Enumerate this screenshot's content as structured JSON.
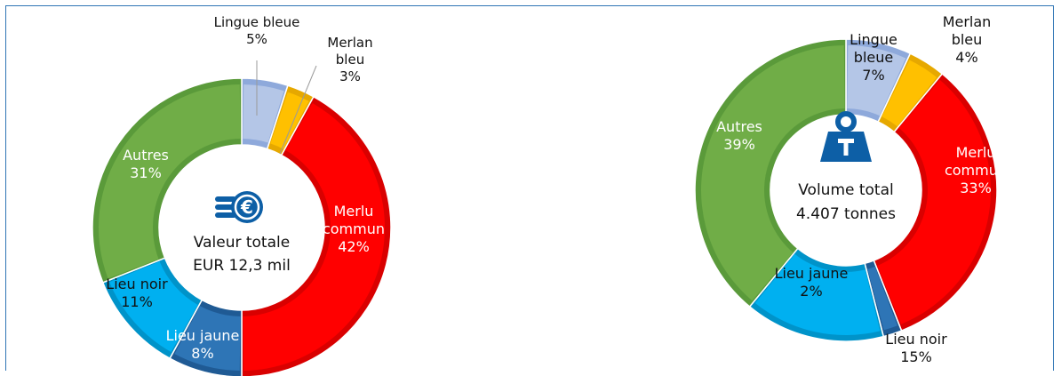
{
  "chart_data": [
    {
      "type": "pie",
      "center_label": [
        "Valeur totale",
        "EUR 12,3 mil"
      ],
      "center_icon": "euro-coins-icon",
      "categories": [
        "Lingue bleue",
        "Merlan bleu",
        "Merlu commun",
        "Lieu jaune",
        "Lieu noir",
        "Autres"
      ],
      "values": [
        5,
        3,
        42,
        8,
        11,
        31
      ],
      "labels": [
        [
          "Lingue bleue",
          "5%"
        ],
        [
          "Merlan",
          "bleu",
          "3%"
        ],
        [
          "Merlu",
          "commun",
          "42%"
        ],
        [
          "Lieu jaune",
          "8%"
        ],
        [
          "Lieu noir",
          "11%"
        ],
        [
          "Autres",
          "31%"
        ]
      ],
      "colors": [
        "#b4c6e7",
        "#ffc000",
        "#ff0000",
        "#2e75b6",
        "#00b0f0",
        "#70ad47"
      ],
      "edge_colors": [
        "#8ea9db",
        "#e6a800",
        "#d90000",
        "#1f5a94",
        "#0093c9",
        "#5a9a3a"
      ]
    },
    {
      "type": "pie",
      "center_label": [
        "Volume total",
        "4.407 tonnes"
      ],
      "center_icon": "weight-icon",
      "categories": [
        "Lingue bleue",
        "Merlan bleu",
        "Merlu commun",
        "Lieu jaune",
        "Lieu noir",
        "Autres"
      ],
      "values": [
        7,
        4,
        33,
        2,
        15,
        39
      ],
      "labels": [
        [
          "Lingue",
          "bleue",
          "7%"
        ],
        [
          "Merlan",
          "bleu",
          "4%"
        ],
        [
          "Merlu",
          "commun",
          "33%"
        ],
        [
          "Lieu jaune",
          "2%"
        ],
        [
          "Lieu noir",
          "15%"
        ],
        [
          "Autres",
          "39%"
        ]
      ],
      "colors": [
        "#b4c6e7",
        "#ffc000",
        "#ff0000",
        "#2e75b6",
        "#00b0f0",
        "#70ad47"
      ],
      "edge_colors": [
        "#8ea9db",
        "#e6a800",
        "#d90000",
        "#1f5a94",
        "#0093c9",
        "#5a9a3a"
      ]
    }
  ]
}
